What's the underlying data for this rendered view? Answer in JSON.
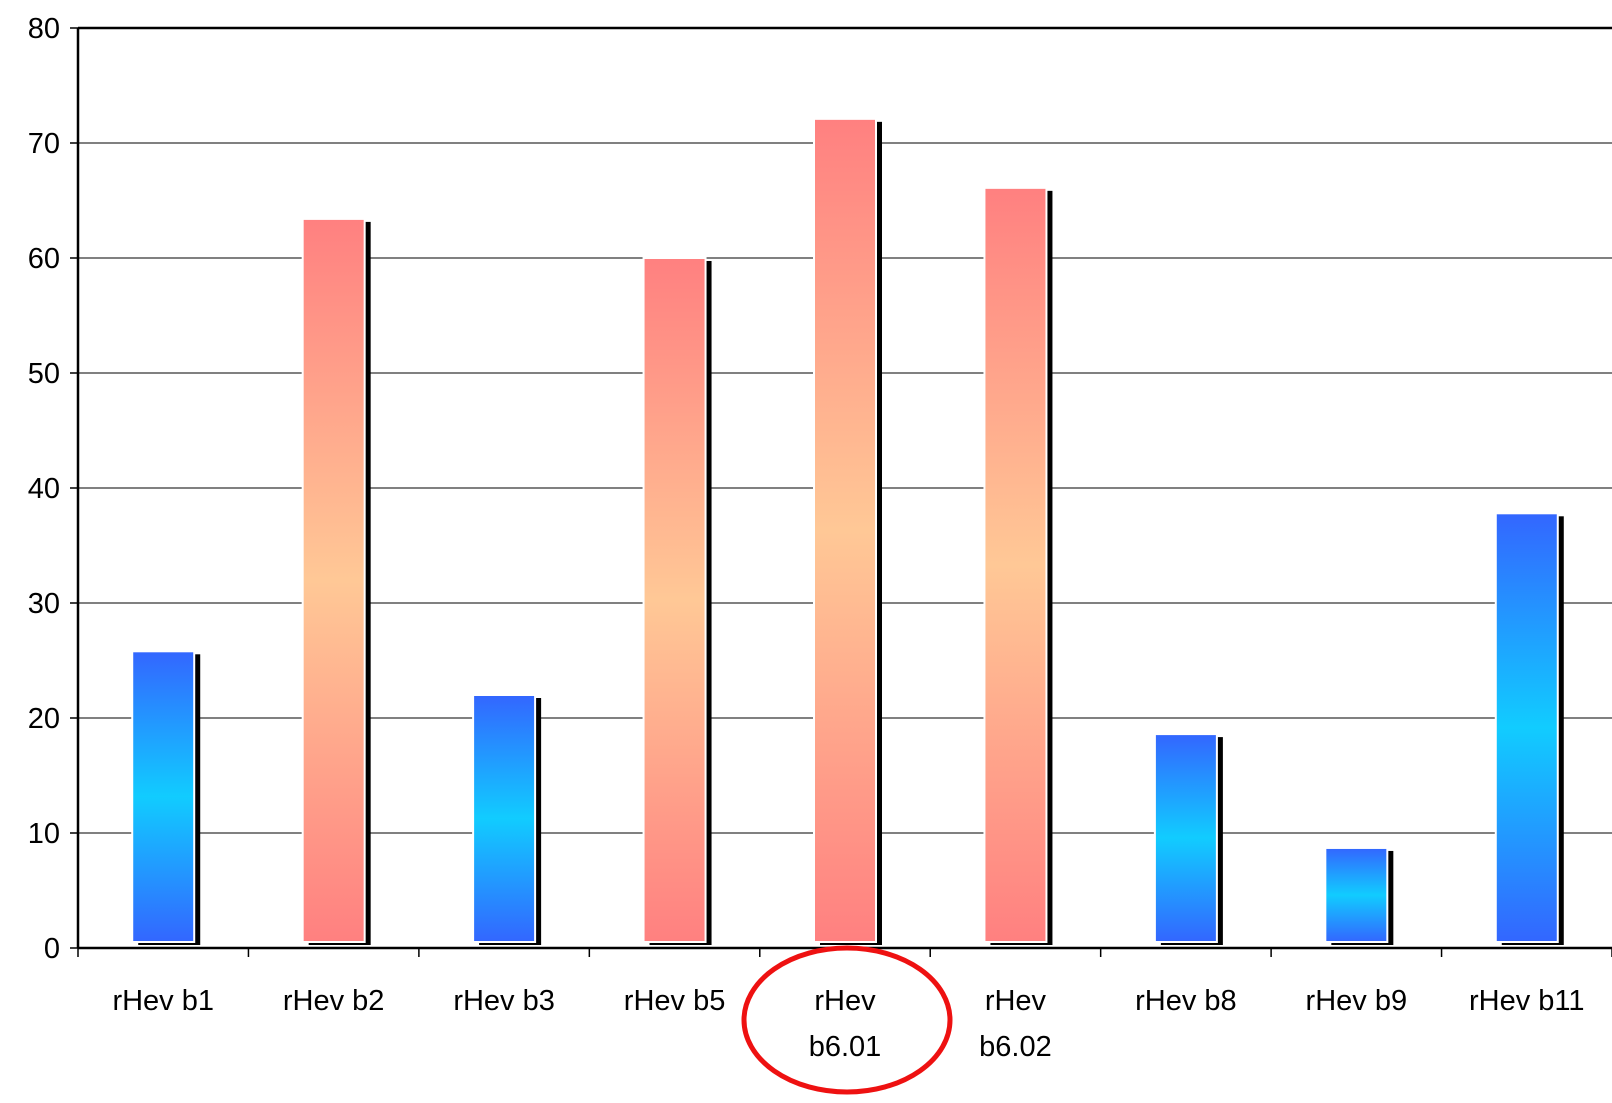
{
  "chart_data": {
    "type": "bar",
    "title": "",
    "xlabel": "",
    "ylabel": "",
    "ylim": [
      0,
      80
    ],
    "yticks": [
      0,
      10,
      20,
      30,
      40,
      50,
      60,
      70,
      80
    ],
    "grid": true,
    "legend": "none",
    "categories": [
      [
        "rHev b1"
      ],
      [
        "rHev b2"
      ],
      [
        "rHev b3"
      ],
      [
        "rHev b5"
      ],
      [
        "rHev",
        "b6.01"
      ],
      [
        "rHev",
        "b6.02"
      ],
      [
        "rHev b8"
      ],
      [
        "rHev b9"
      ],
      [
        "rHev b11"
      ]
    ],
    "values": [
      25.8,
      63.4,
      22.0,
      60.0,
      72.1,
      66.1,
      18.6,
      8.7,
      37.8
    ],
    "bar_colors": [
      "blue",
      "red",
      "blue",
      "red",
      "red",
      "red",
      "blue",
      "blue",
      "blue"
    ],
    "highlighted_category_index": 4,
    "colors": {
      "blue_edge": "#3366ff",
      "blue_center": "#11ccff",
      "red_edge": "#ff8080",
      "red_center": "#ffc896",
      "highlight": "#ee1111"
    }
  }
}
